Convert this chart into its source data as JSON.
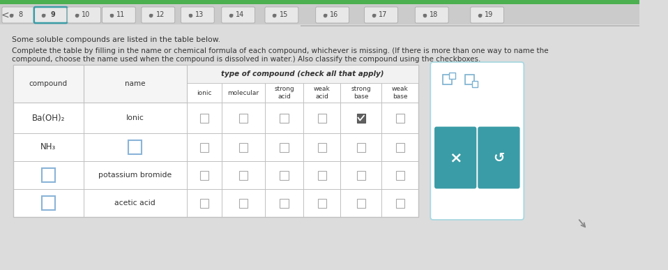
{
  "bg_color": "#dcdcdc",
  "nav_bar_color": "#d2d2d2",
  "nav_items": [
    "8",
    "9",
    "10",
    "11",
    "12",
    "13",
    "14",
    "15",
    "16",
    "17",
    "18",
    "19"
  ],
  "nav_active": "9",
  "title1": "Some soluble compounds are listed in the table below.",
  "title2": "Complete the table by filling in the name or chemical formula of each compound, whichever is missing. (If there is more than one way to name the",
  "title3": "compound, choose the name used when the compound is dissolved in water.) Also classify the compound using the checkboxes.",
  "rows": [
    [
      "Ba(OH)₂",
      "Ionic",
      false,
      false,
      false,
      false,
      true,
      false
    ],
    [
      "NH₃",
      "box",
      false,
      false,
      false,
      false,
      false,
      false
    ],
    [
      "box",
      "potassium bromide",
      false,
      false,
      false,
      false,
      false,
      false
    ],
    [
      "box",
      "acetic acid",
      false,
      false,
      false,
      false,
      false,
      false
    ]
  ],
  "teal_color": "#3a9ca6",
  "table_bg": "#ffffff",
  "border_color": "#c0c0c0",
  "green_top": "#4caf50",
  "checkbox_border": "#8ab4d8",
  "checked_fill": "#606060"
}
